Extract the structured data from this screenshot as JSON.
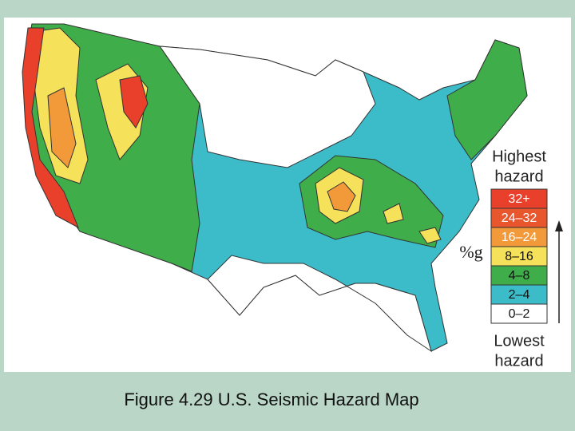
{
  "map": {
    "caption": "Figure 4.29  U.S. Seismic Hazard Map",
    "legend": {
      "top": [
        "Highest",
        "hazard"
      ],
      "bottom": [
        "Lowest",
        "hazard"
      ],
      "unit": "%g",
      "classes": [
        {
          "label": "32+",
          "color": "#e8402a"
        },
        {
          "label": "24–32",
          "color": "#e8562e"
        },
        {
          "label": "16–24",
          "color": "#f29a3a"
        },
        {
          "label": "8–16",
          "color": "#f5e25a"
        },
        {
          "label": "4–8",
          "color": "#3fae4a"
        },
        {
          "label": "2–4",
          "color": "#3bbcc8"
        },
        {
          "label": "0–2",
          "color": "#ffffff"
        }
      ]
    }
  }
}
